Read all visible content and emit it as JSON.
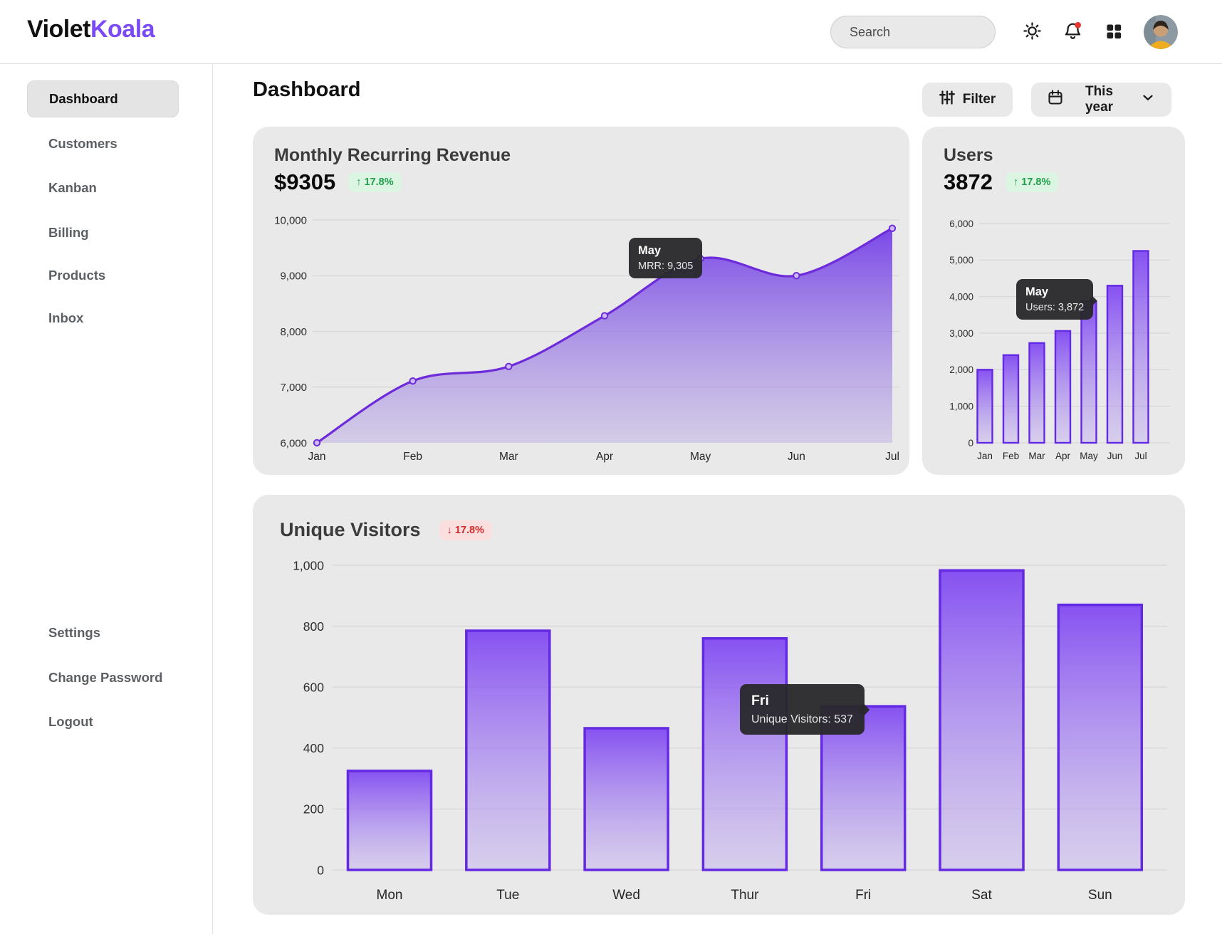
{
  "brand": {
    "first": "Violet",
    "second": "Koala"
  },
  "topbar": {
    "search_placeholder": "Search",
    "icons": [
      "sun-icon",
      "bell-icon",
      "grid-icon",
      "avatar"
    ]
  },
  "sidebar": {
    "items": [
      {
        "label": "Dashboard",
        "active": true
      },
      {
        "label": "Customers",
        "active": false
      },
      {
        "label": "Kanban",
        "active": false
      },
      {
        "label": "Billing",
        "active": false
      },
      {
        "label": "Products",
        "active": false
      },
      {
        "label": "Inbox",
        "active": false
      }
    ],
    "footer_items": [
      {
        "label": "Settings"
      },
      {
        "label": "Change Password"
      },
      {
        "label": "Logout"
      }
    ]
  },
  "header": {
    "title": "Dashboard",
    "filter_label": "Filter",
    "period_label": "This year"
  },
  "cards": {
    "mrr": {
      "title": "Monthly Recurring Revenue",
      "value": "$9305",
      "badge": "↑ 17.8%",
      "tooltip_title": "May",
      "tooltip_text": "MRR: 9,305"
    },
    "users": {
      "title": "Users",
      "value": "3872",
      "badge": "↑ 17.8%",
      "tooltip_title": "May",
      "tooltip_text": "Users: 3,872"
    },
    "visitors": {
      "title": "Unique Visitors",
      "badge": "↓ 17.8%",
      "tooltip_title": "Fri",
      "tooltip_text": "Unique Visitors: 537"
    }
  },
  "colors": {
    "accent_purple": "#7b49f5",
    "chart_stroke": "#6429e3",
    "card_bg": "#e9e9e9",
    "badge_up_bg": "#dcf5e3",
    "badge_up_text": "#1e9e4a",
    "badge_down_bg": "#fbdfdf",
    "badge_down_text": "#d22b2b",
    "tooltip_bg": "#28282a"
  },
  "chart_data": [
    {
      "id": "mrr",
      "type": "area",
      "title": "Monthly Recurring Revenue",
      "x": [
        "Jan",
        "Feb",
        "Mar",
        "Apr",
        "May",
        "Jun",
        "Jul"
      ],
      "series": [
        {
          "name": "MRR",
          "values": [
            6000,
            7110,
            7370,
            8280,
            9305,
            9000,
            9850
          ]
        }
      ],
      "ylim": [
        6000,
        10000
      ],
      "ytick_step": 1000,
      "yticks": [
        6000,
        7000,
        8000,
        9000,
        10000
      ],
      "grid": true,
      "highlight": {
        "category": "May",
        "value": 9305
      }
    },
    {
      "id": "users",
      "type": "bar",
      "title": "Users",
      "categories": [
        "Jan",
        "Feb",
        "Mar",
        "Apr",
        "May",
        "Jun",
        "Jul"
      ],
      "values": [
        2000,
        2400,
        2730,
        3060,
        3872,
        4300,
        5250
      ],
      "ylim": [
        0,
        6000
      ],
      "ytick_step": 1000,
      "yticks": [
        0,
        1000,
        2000,
        3000,
        4000,
        5000,
        6000
      ],
      "grid": true,
      "highlight": {
        "category": "May",
        "value": 3872
      }
    },
    {
      "id": "visitors",
      "type": "bar",
      "title": "Unique Visitors",
      "categories": [
        "Mon",
        "Tue",
        "Wed",
        "Thur",
        "Fri",
        "Sat",
        "Sun"
      ],
      "values": [
        325,
        785,
        465,
        760,
        537,
        983,
        870
      ],
      "ylim": [
        0,
        1000
      ],
      "ytick_step": 200,
      "yticks": [
        0,
        200,
        400,
        600,
        800,
        1000
      ],
      "grid": true,
      "highlight": {
        "category": "Fri",
        "value": 537
      }
    }
  ]
}
